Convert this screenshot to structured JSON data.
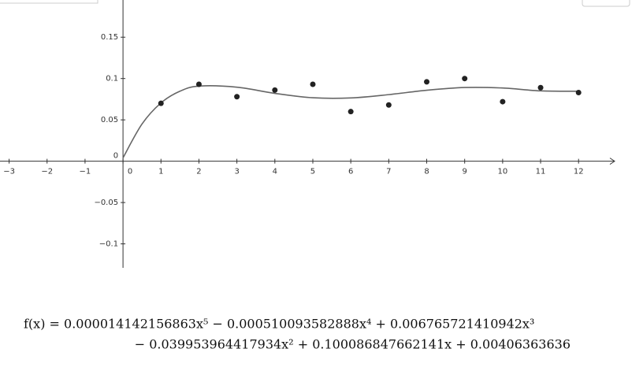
{
  "chart_data": {
    "type": "scatter",
    "xlim": [
      -3.24,
      12.95
    ],
    "ylim": [
      -0.129,
      0.195
    ],
    "xticks": [
      {
        "value": -3,
        "label": "−3"
      },
      {
        "value": -2,
        "label": "−2"
      },
      {
        "value": -1,
        "label": "−1"
      },
      0,
      1,
      2,
      3,
      4,
      5,
      6,
      7,
      8,
      9,
      10,
      11,
      12
    ],
    "yticks": [
      {
        "value": -0.1,
        "label": "−0.1"
      },
      {
        "value": -0.05,
        "label": "−0.05"
      },
      0,
      0.05,
      0.1,
      0.15
    ],
    "points": {
      "color": "#222222",
      "x": [
        1,
        2,
        3,
        4,
        5,
        6,
        7,
        8,
        9,
        10,
        11,
        12
      ],
      "values": [
        0.07,
        0.093,
        0.078,
        0.086,
        0.093,
        0.06,
        0.068,
        0.096,
        0.1,
        0.072,
        0.089,
        0.083
      ]
    },
    "curve": {
      "color": "#666666",
      "x": [
        0,
        0.5,
        1,
        1.5,
        2,
        3,
        4,
        5,
        6,
        7,
        8,
        9,
        10,
        11,
        12
      ],
      "values": [
        0.00406,
        0.04493,
        0.07047,
        0.08466,
        0.09084,
        0.08953,
        0.08205,
        0.07675,
        0.07653,
        0.08052,
        0.08582,
        0.08914,
        0.08854,
        0.08509,
        0.08461
      ]
    },
    "equation": [
      "f(x) = 0.000014142156863x⁵ − 0.000510093582888x⁴ + 0.006765721410942x³",
      "− 0.039953964417934x² + 0.100086847662141x + 0.00406363636"
    ]
  }
}
